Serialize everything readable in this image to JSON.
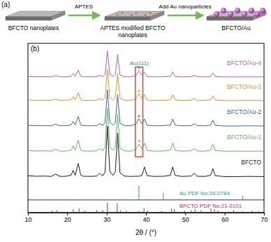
{
  "panel_a": {
    "label": "(a)",
    "steps": [
      [
        "BFCTO nanoplates"
      ],
      [
        "APTES modified BFCTO",
        "nanoplates"
      ],
      [
        "BFCTO/Au"
      ]
    ],
    "arrows": [
      "APTES",
      "Add Au nanoparticles"
    ]
  },
  "chart_data": {
    "type": "line",
    "label": "(b)",
    "xlabel": "2θ / (°)",
    "xlim": [
      10,
      70
    ],
    "xticks": [
      10,
      20,
      30,
      40,
      50,
      60,
      70
    ],
    "ylim": [
      0,
      100
    ],
    "tick_labels": "x",
    "x": [
      10,
      12,
      14,
      16,
      17,
      18,
      19,
      20,
      21,
      21.5,
      22,
      22.8,
      23.4,
      24,
      26,
      27.5,
      28.2,
      29,
      29.6,
      30.2,
      30.8,
      31.6,
      32.2,
      32.8,
      33.4,
      34.5,
      36,
      37.4,
      38.2,
      39,
      39.6,
      40.3,
      42,
      44.5,
      46.2,
      46.8,
      47.4,
      49,
      51.5,
      52.3,
      53,
      55,
      56.4,
      57,
      57.6,
      60,
      63,
      66,
      70
    ],
    "series": [
      {
        "name": "BFCTO",
        "color": "#1a1a1a",
        "values": [
          21.8,
          21.5,
          21.6,
          21.4,
          22.8,
          21.5,
          21.4,
          21.6,
          22.2,
          25.0,
          22.0,
          29.0,
          22.2,
          21.5,
          21.4,
          21.6,
          23.2,
          21.8,
          24.0,
          51.0,
          24.5,
          22.0,
          24.0,
          47.0,
          23.5,
          21.6,
          21.4,
          21.5,
          21.5,
          22.0,
          27.0,
          21.8,
          21.4,
          21.5,
          22.0,
          27.0,
          22.0,
          21.4,
          21.6,
          23.2,
          21.5,
          21.4,
          22.0,
          26.0,
          21.8,
          21.3,
          21.3,
          21.4,
          21.3
        ]
      },
      {
        "name": "BFCTO/Au-1",
        "color": "#5cb85c",
        "peak_label": {
          "text": "*",
          "x": 38.2
        },
        "values": [
          36.7,
          36.4,
          36.5,
          36.3,
          37.5,
          36.4,
          36.3,
          36.5,
          37.0,
          39.4,
          36.9,
          42.8,
          37.0,
          36.4,
          36.3,
          36.5,
          37.9,
          36.7,
          38.6,
          61.5,
          39.0,
          36.9,
          38.6,
          58.1,
          38.1,
          36.5,
          36.3,
          37.2,
          40.4,
          37.7,
          41.1,
          36.7,
          36.3,
          36.4,
          36.9,
          41.1,
          36.9,
          36.3,
          36.5,
          37.9,
          36.4,
          36.3,
          36.9,
          40.3,
          36.7,
          36.3,
          36.3,
          36.3,
          36.3
        ]
      },
      {
        "name": "BFCTO/Au-2",
        "color": "#3a62b0",
        "peak_label": {
          "text": "*",
          "x": 38.2
        },
        "values": [
          51.6,
          51.4,
          51.4,
          51.3,
          52.3,
          51.4,
          51.3,
          51.4,
          51.9,
          53.9,
          51.7,
          56.8,
          51.9,
          51.4,
          51.3,
          51.4,
          52.6,
          51.6,
          53.2,
          72.6,
          53.5,
          51.7,
          53.2,
          69.7,
          52.8,
          51.4,
          51.3,
          52.2,
          55.4,
          52.5,
          55.3,
          51.6,
          51.3,
          51.4,
          51.7,
          55.3,
          51.7,
          51.3,
          51.4,
          52.6,
          51.4,
          51.3,
          51.7,
          54.6,
          51.6,
          51.2,
          51.2,
          51.3,
          51.2
        ]
      },
      {
        "name": "BFCTO/Au-3",
        "color": "#f28c28",
        "peak_label": {
          "text": "*",
          "x": 38.2
        },
        "values": [
          66.5,
          66.3,
          66.4,
          66.3,
          67.1,
          66.3,
          66.3,
          66.4,
          66.7,
          68.5,
          66.6,
          71.0,
          66.7,
          66.3,
          66.3,
          66.4,
          67.4,
          66.5,
          67.9,
          84.6,
          68.2,
          66.6,
          67.9,
          82.1,
          67.6,
          66.4,
          66.3,
          67.1,
          70.3,
          67.4,
          69.7,
          66.5,
          66.3,
          66.3,
          66.6,
          69.7,
          66.6,
          66.3,
          66.4,
          67.4,
          66.3,
          66.3,
          66.6,
          69.1,
          66.5,
          66.2,
          66.2,
          66.3,
          66.2
        ]
      },
      {
        "name": "BFCTO/Au-4",
        "color": "#b05fc0",
        "peak_label": {
          "text": "*",
          "x": 38.2
        },
        "values": [
          80.4,
          80.3,
          80.3,
          80.2,
          80.9,
          80.3,
          80.2,
          80.3,
          80.6,
          82.1,
          80.5,
          84.2,
          80.6,
          80.3,
          80.2,
          80.3,
          81.1,
          80.4,
          81.6,
          95.6,
          81.8,
          80.5,
          81.6,
          93.5,
          81.3,
          80.3,
          80.2,
          81.0,
          83.8,
          81.2,
          83.1,
          80.4,
          80.2,
          80.3,
          80.5,
          83.1,
          80.5,
          80.2,
          80.3,
          81.1,
          80.3,
          80.2,
          80.5,
          82.6,
          80.4,
          80.2,
          80.2,
          80.2,
          80.2
        ]
      }
    ],
    "references": [
      {
        "name": "Au PDF No.04-0784",
        "color": "#2a9d8f",
        "type": "stem",
        "base": 7.5,
        "x": [
          38.2,
          44.4,
          64.6
        ],
        "values": [
          16,
          11.5,
          10
        ]
      },
      {
        "name": "BFCTO PDF No.21-0101",
        "color": "#a0306e",
        "type": "stem",
        "base": 0,
        "x": [
          16.2,
          17.3,
          21.5,
          23.0,
          24.4,
          27.5,
          29.0,
          30.2,
          32.7,
          33.5,
          35.0,
          38.2,
          39.5,
          40.4,
          44.0,
          46.5,
          47.2,
          49.8,
          51.5,
          52.5,
          54.0,
          56.5,
          57.4,
          58.3,
          62.3,
          64.5,
          67.0,
          68.6
        ],
        "values": [
          1.2,
          1.5,
          2.0,
          2.5,
          1.2,
          1.5,
          1.5,
          6.0,
          5.5,
          1.5,
          1.0,
          1.0,
          2.5,
          1.2,
          1.0,
          2.5,
          2.0,
          1.2,
          1.5,
          2.0,
          1.5,
          2.5,
          2.0,
          1.2,
          1.5,
          1.0,
          1.2,
          1.0
        ]
      }
    ],
    "annotations": [
      {
        "text": "Au(111)",
        "xrange": [
          37.3,
          39.2
        ],
        "yrange": [
          33,
          86
        ],
        "color": "#e53b2c"
      }
    ]
  }
}
